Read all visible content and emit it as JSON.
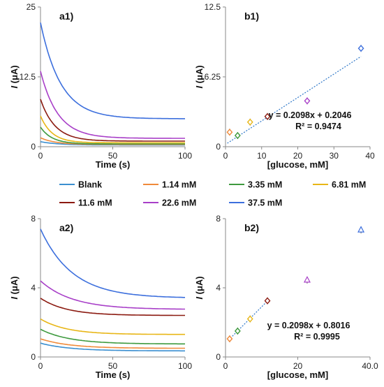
{
  "colors": {
    "blank": "#3b8fd0",
    "c1_14": "#f08a3a",
    "c3_35": "#3e9a3e",
    "c6_81": "#e8b616",
    "c11_6": "#8b1a10",
    "c22_6": "#a83fc8",
    "c37_5": "#3c6fdd",
    "fit": "#2e77c8"
  },
  "legend": {
    "items": [
      {
        "label": "Blank",
        "color_key": "blank"
      },
      {
        "label": "1.14 mM",
        "color_key": "c1_14"
      },
      {
        "label": "3.35 mM",
        "color_key": "c3_35"
      },
      {
        "label": "6.81 mM",
        "color_key": "c6_81"
      },
      {
        "label": "11.6 mM",
        "color_key": "c11_6"
      },
      {
        "label": "22.6 mM",
        "color_key": "c22_6"
      },
      {
        "label": "37.5 mM",
        "color_key": "c37_5"
      }
    ]
  },
  "chart_data": [
    {
      "id": "a1",
      "type": "line",
      "panel_label": "a1)",
      "xlabel": "Time (s)",
      "ylabel_italic": "I",
      "ylabel_rest": " (μA)",
      "xlim": [
        0,
        100
      ],
      "ylim": [
        0,
        25
      ],
      "xticks": [
        "0",
        "50",
        "100"
      ],
      "yticks": [
        "0",
        "12.5",
        "25"
      ],
      "series": [
        {
          "name": "Blank",
          "color_key": "blank",
          "I0": 0.9,
          "Iinf": 0.3,
          "tau": 12
        },
        {
          "name": "1.14 mM",
          "color_key": "c1_14",
          "I0": 1.6,
          "Iinf": 0.4,
          "tau": 10
        },
        {
          "name": "3.35 mM",
          "color_key": "c3_35",
          "I0": 3.5,
          "Iinf": 0.5,
          "tau": 8
        },
        {
          "name": "6.81 mM",
          "color_key": "c6_81",
          "I0": 5.5,
          "Iinf": 0.7,
          "tau": 8
        },
        {
          "name": "11.6 mM",
          "color_key": "c11_6",
          "I0": 8.5,
          "Iinf": 1.0,
          "tau": 10
        },
        {
          "name": "22.6 mM",
          "color_key": "c22_6",
          "I0": 13.5,
          "Iinf": 1.5,
          "tau": 12
        },
        {
          "name": "37.5 mM",
          "color_key": "c37_5",
          "I0": 22.2,
          "Iinf": 5.0,
          "tau": 14
        }
      ]
    },
    {
      "id": "b1",
      "type": "scatter",
      "panel_label": "b1)",
      "xlabel": "[glucose, mM]",
      "ylabel_italic": "I",
      "ylabel_rest": " (μA)",
      "xlim": [
        0,
        40
      ],
      "ylim": [
        0,
        12.5
      ],
      "xticks": [
        "0",
        "10",
        "20",
        "30",
        "40"
      ],
      "yticks": [
        "0",
        "6.25",
        "12.5"
      ],
      "marker": "diamond",
      "points": [
        {
          "x": 1.14,
          "y": 1.3,
          "color_key": "c1_14"
        },
        {
          "x": 3.35,
          "y": 1.0,
          "color_key": "c3_35"
        },
        {
          "x": 6.81,
          "y": 2.2,
          "color_key": "c6_81"
        },
        {
          "x": 11.6,
          "y": 2.7,
          "color_key": "c11_6"
        },
        {
          "x": 22.6,
          "y": 4.1,
          "color_key": "c22_6"
        },
        {
          "x": 37.5,
          "y": 8.8,
          "color_key": "c37_5"
        }
      ],
      "fit": {
        "slope": 0.2098,
        "intercept": 0.2046,
        "x_range": [
          0.5,
          37.5
        ]
      },
      "equation": "y = 0.2098x + 0.2046",
      "r2": "R² = 0.9474"
    },
    {
      "id": "a2",
      "type": "line",
      "panel_label": "a2)",
      "xlabel": "Time (s)",
      "ylabel_italic": "I",
      "ylabel_rest": " (μA)",
      "xlim": [
        0,
        100
      ],
      "ylim": [
        0,
        8
      ],
      "xticks": [
        "0",
        "50",
        "100"
      ],
      "yticks": [
        "0",
        "4",
        "8"
      ],
      "series": [
        {
          "name": "Blank",
          "color_key": "blank",
          "I0": 0.8,
          "Iinf": 0.35,
          "tau": 20
        },
        {
          "name": "1.14 mM",
          "color_key": "c1_14",
          "I0": 1.05,
          "Iinf": 0.5,
          "tau": 20
        },
        {
          "name": "3.35 mM",
          "color_key": "c3_35",
          "I0": 1.6,
          "Iinf": 0.75,
          "tau": 20
        },
        {
          "name": "6.81 mM",
          "color_key": "c6_81",
          "I0": 2.2,
          "Iinf": 1.3,
          "tau": 18
        },
        {
          "name": "11.6 mM",
          "color_key": "c11_6",
          "I0": 3.4,
          "Iinf": 2.4,
          "tau": 18
        },
        {
          "name": "22.6 mM",
          "color_key": "c22_6",
          "I0": 4.4,
          "Iinf": 2.75,
          "tau": 22
        },
        {
          "name": "37.5 mM",
          "color_key": "c37_5",
          "I0": 7.4,
          "Iinf": 3.4,
          "tau": 22
        }
      ]
    },
    {
      "id": "b2",
      "type": "scatter",
      "panel_label": "b2)",
      "xlabel": "[glucose, mM]",
      "ylabel_italic": "I",
      "ylabel_rest": " (μA)",
      "xlim": [
        0,
        40
      ],
      "ylim": [
        0,
        8
      ],
      "xticks": [
        "0",
        "20",
        "40.0"
      ],
      "yticks": [
        "0",
        "4",
        "8"
      ],
      "marker": "diamond",
      "points": [
        {
          "x": 1.14,
          "y": 1.05,
          "color_key": "c1_14"
        },
        {
          "x": 3.35,
          "y": 1.5,
          "color_key": "c3_35"
        },
        {
          "x": 6.81,
          "y": 2.2,
          "color_key": "c6_81"
        },
        {
          "x": 11.6,
          "y": 3.25,
          "color_key": "c11_6"
        },
        {
          "x": 22.6,
          "y": 4.45,
          "color_key": "c22_6",
          "marker": "triangle"
        },
        {
          "x": 37.5,
          "y": 7.35,
          "color_key": "c37_5",
          "marker": "triangle"
        }
      ],
      "fit": {
        "slope": 0.2098,
        "intercept": 0.8016,
        "x_range": [
          0.8,
          11.8
        ]
      },
      "equation": "y = 0.2098x + 0.8016",
      "r2": "R² = 0.9995"
    }
  ]
}
